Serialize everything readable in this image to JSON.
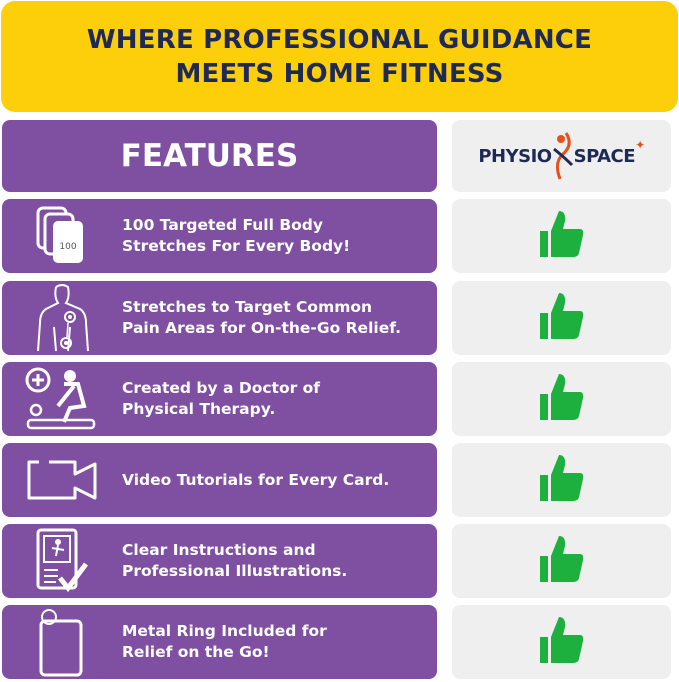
{
  "banner": {
    "line1": "WHERE PROFESSIONAL GUIDANCE",
    "line2": "MEETS HOME FITNESS"
  },
  "header": {
    "features_label": "FEATURES",
    "logo_text_left": "PHYSIO",
    "logo_text_right": "SPACE"
  },
  "colors": {
    "banner": "#FDCE0A",
    "feature_bg": "#7F50A1",
    "check_bg": "#EFEFEF",
    "thumb": "#1DB03F",
    "title_text": "#1E2A55",
    "logo_accent": "#E5501C"
  },
  "features": [
    {
      "icon": "cards-stack-icon",
      "icon_label": "100",
      "text": "100 Targeted Full Body\nStretches For Every Body!",
      "included": true
    },
    {
      "icon": "body-pain-points-icon",
      "text": "Stretches to Target Common\nPain Areas for On-the-Go Relief.",
      "included": true
    },
    {
      "icon": "physical-therapist-icon",
      "text": "Created by a Doctor of\nPhysical Therapy.",
      "included": true
    },
    {
      "icon": "video-camera-icon",
      "text": "Video Tutorials for Every Card.",
      "included": true
    },
    {
      "icon": "instruction-card-check-icon",
      "text": "Clear Instructions and\nProfessional Illustrations.",
      "included": true
    },
    {
      "icon": "card-ring-icon",
      "text": "Metal Ring Included for\nRelief on the Go!",
      "included": true
    }
  ]
}
